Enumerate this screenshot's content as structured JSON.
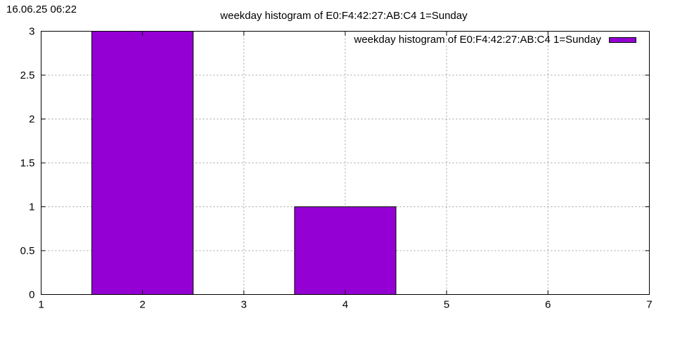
{
  "timestamp": "16.06.25 06:22",
  "chart_data": {
    "type": "bar",
    "title": "weekday histogram of E0:F4:42:27:AB:C4 1=Sunday",
    "xlabel": "",
    "ylabel": "",
    "xlim": [
      1,
      7
    ],
    "ylim": [
      0,
      3
    ],
    "x_ticks": [
      "1",
      "2",
      "3",
      "4",
      "5",
      "6",
      "7"
    ],
    "y_ticks": [
      "0",
      "0.5",
      "1",
      "1.5",
      "2",
      "2.5",
      "3"
    ],
    "grid": true,
    "legend_position": "top-right",
    "series": [
      {
        "name": "weekday histogram of E0:F4:42:27:AB:C4 1=Sunday",
        "color": "#9400d3",
        "bar_width": 1,
        "x": [
          2,
          4
        ],
        "values": [
          3,
          1
        ]
      }
    ]
  }
}
